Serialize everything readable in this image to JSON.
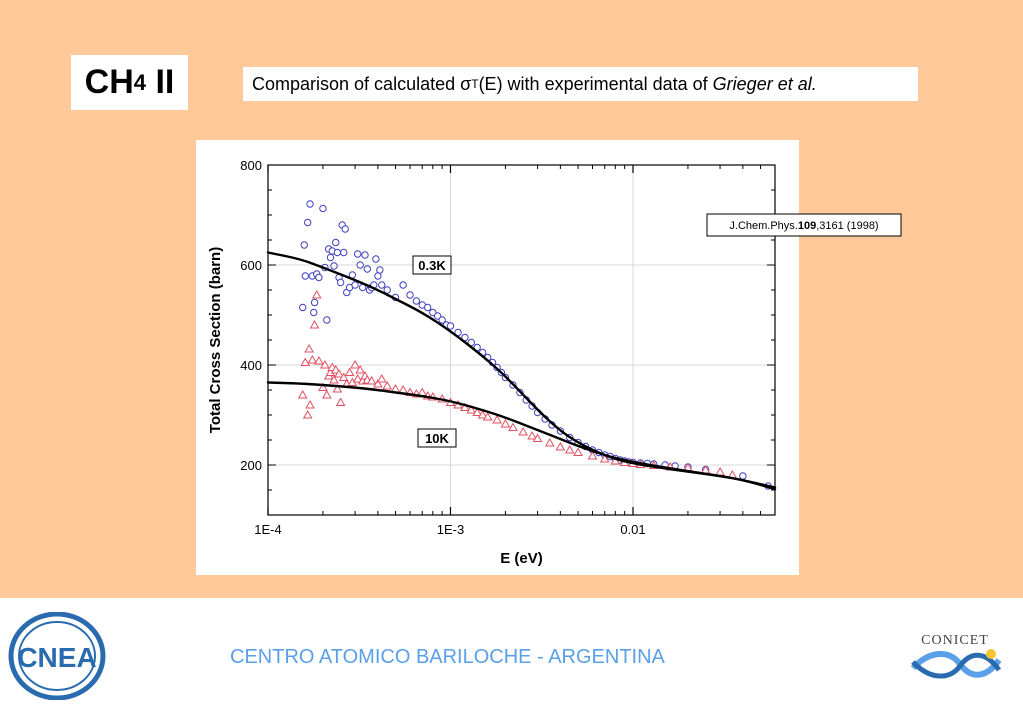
{
  "slide": {
    "title_main": "CH",
    "title_sub": "4",
    "title_tail": " II",
    "subtitle_pre": "Comparison of calculated σ",
    "subtitle_sub": "T",
    "subtitle_mid": "(E) with experimental data of ",
    "subtitle_italic": "Grieger et al.",
    "footer_text": "CENTRO ATOMICO BARILOCHE - ARGENTINA",
    "logo_left_text": "CNEA",
    "logo_right_text": "CONICET"
  },
  "colors": {
    "background": "#ffc99a",
    "footer_text": "#5aa0e8",
    "circles": "#4040c0",
    "triangles": "#e05060",
    "curves": "#000000"
  },
  "chart_data": {
    "type": "scatter",
    "x_scale": "log",
    "xlabel": "E (eV)",
    "ylabel": "Total Cross Section (barn)",
    "xlim": [
      0.0001,
      0.06
    ],
    "ylim": [
      100,
      800
    ],
    "x_ticks": [
      0.0001,
      0.001,
      0.01
    ],
    "x_tick_labels": [
      "1E-4",
      "1E-3",
      "0.01"
    ],
    "y_ticks": [
      200,
      400,
      600,
      800
    ],
    "y_tick_labels": [
      "200",
      "400",
      "600",
      "800"
    ],
    "grid": true,
    "reference": {
      "pre": "J.Chem.Phys.",
      "bold": "109",
      "post": ",3161 (1998)"
    },
    "series": [
      {
        "name": "0.3K",
        "marker": "circle",
        "points": [
          [
            0.000155,
            515
          ],
          [
            0.00016,
            578
          ],
          [
            0.000165,
            685
          ],
          [
            0.000158,
            640
          ],
          [
            0.00017,
            722
          ],
          [
            0.000175,
            578
          ],
          [
            0.000178,
            505
          ],
          [
            0.00018,
            525
          ],
          [
            0.000185,
            582
          ],
          [
            0.00019,
            575
          ],
          [
            0.0002,
            713
          ],
          [
            0.000205,
            595
          ],
          [
            0.00021,
            490
          ],
          [
            0.000215,
            632
          ],
          [
            0.00022,
            615
          ],
          [
            0.000225,
            628
          ],
          [
            0.00023,
            598
          ],
          [
            0.000235,
            645
          ],
          [
            0.00024,
            625
          ],
          [
            0.000245,
            575
          ],
          [
            0.00025,
            565
          ],
          [
            0.000255,
            680
          ],
          [
            0.00026,
            625
          ],
          [
            0.000265,
            672
          ],
          [
            0.00027,
            545
          ],
          [
            0.00028,
            555
          ],
          [
            0.00029,
            580
          ],
          [
            0.0003,
            560
          ],
          [
            0.00031,
            622
          ],
          [
            0.00032,
            600
          ],
          [
            0.00033,
            555
          ],
          [
            0.00034,
            620
          ],
          [
            0.00035,
            592
          ],
          [
            0.00036,
            550
          ],
          [
            0.00037,
            555
          ],
          [
            0.00038,
            560
          ],
          [
            0.00039,
            612
          ],
          [
            0.0004,
            578
          ],
          [
            0.00041,
            590
          ],
          [
            0.00042,
            560
          ],
          [
            0.00045,
            550
          ],
          [
            0.0005,
            535
          ],
          [
            0.00055,
            560
          ],
          [
            0.0006,
            540
          ],
          [
            0.00065,
            528
          ],
          [
            0.0007,
            520
          ],
          [
            0.00075,
            515
          ],
          [
            0.0008,
            505
          ],
          [
            0.00085,
            498
          ],
          [
            0.0009,
            490
          ],
          [
            0.00095,
            480
          ],
          [
            0.001,
            478
          ],
          [
            0.0011,
            465
          ],
          [
            0.0012,
            455
          ],
          [
            0.0013,
            445
          ],
          [
            0.0014,
            435
          ],
          [
            0.0015,
            425
          ],
          [
            0.0016,
            415
          ],
          [
            0.0017,
            405
          ],
          [
            0.0018,
            395
          ],
          [
            0.0019,
            385
          ],
          [
            0.002,
            375
          ],
          [
            0.0022,
            360
          ],
          [
            0.0024,
            345
          ],
          [
            0.0026,
            330
          ],
          [
            0.0028,
            318
          ],
          [
            0.003,
            305
          ],
          [
            0.0033,
            292
          ],
          [
            0.0036,
            280
          ],
          [
            0.004,
            268
          ],
          [
            0.0045,
            255
          ],
          [
            0.005,
            245
          ],
          [
            0.0055,
            237
          ],
          [
            0.006,
            230
          ],
          [
            0.0065,
            225
          ],
          [
            0.007,
            220
          ],
          [
            0.0075,
            217
          ],
          [
            0.008,
            213
          ],
          [
            0.0085,
            210
          ],
          [
            0.009,
            208
          ],
          [
            0.0095,
            206
          ],
          [
            0.01,
            205
          ],
          [
            0.011,
            204
          ],
          [
            0.012,
            203
          ],
          [
            0.013,
            202
          ],
          [
            0.015,
            200
          ],
          [
            0.017,
            198
          ],
          [
            0.02,
            196
          ],
          [
            0.025,
            191
          ],
          [
            0.04,
            178
          ],
          [
            0.055,
            158
          ]
        ]
      },
      {
        "name": "10K",
        "marker": "triangle",
        "points": [
          [
            0.000155,
            340
          ],
          [
            0.00016,
            405
          ],
          [
            0.000165,
            300
          ],
          [
            0.000168,
            432
          ],
          [
            0.00017,
            320
          ],
          [
            0.000175,
            410
          ],
          [
            0.00018,
            480
          ],
          [
            0.000185,
            540
          ],
          [
            0.00019,
            408
          ],
          [
            0.0002,
            355
          ],
          [
            0.000205,
            400
          ],
          [
            0.00021,
            340
          ],
          [
            0.000215,
            378
          ],
          [
            0.00022,
            385
          ],
          [
            0.000225,
            395
          ],
          [
            0.00023,
            370
          ],
          [
            0.000235,
            390
          ],
          [
            0.00024,
            352
          ],
          [
            0.000245,
            382
          ],
          [
            0.00025,
            325
          ],
          [
            0.00026,
            375
          ],
          [
            0.00027,
            362
          ],
          [
            0.00028,
            385
          ],
          [
            0.00029,
            365
          ],
          [
            0.0003,
            400
          ],
          [
            0.00031,
            372
          ],
          [
            0.00032,
            390
          ],
          [
            0.00033,
            368
          ],
          [
            0.00034,
            378
          ],
          [
            0.00035,
            370
          ],
          [
            0.00037,
            368
          ],
          [
            0.0004,
            362
          ],
          [
            0.00042,
            372
          ],
          [
            0.00045,
            358
          ],
          [
            0.0005,
            352
          ],
          [
            0.00055,
            350
          ],
          [
            0.0006,
            345
          ],
          [
            0.00065,
            342
          ],
          [
            0.0007,
            345
          ],
          [
            0.00075,
            338
          ],
          [
            0.0008,
            336
          ],
          [
            0.0009,
            332
          ],
          [
            0.001,
            325
          ],
          [
            0.0011,
            320
          ],
          [
            0.0012,
            315
          ],
          [
            0.0013,
            310
          ],
          [
            0.0014,
            305
          ],
          [
            0.0015,
            300
          ],
          [
            0.0016,
            296
          ],
          [
            0.0018,
            290
          ],
          [
            0.002,
            282
          ],
          [
            0.0022,
            275
          ],
          [
            0.0025,
            266
          ],
          [
            0.0028,
            258
          ],
          [
            0.003,
            253
          ],
          [
            0.0035,
            244
          ],
          [
            0.004,
            236
          ],
          [
            0.0045,
            230
          ],
          [
            0.005,
            225
          ],
          [
            0.006,
            218
          ],
          [
            0.007,
            212
          ],
          [
            0.008,
            208
          ],
          [
            0.009,
            205
          ],
          [
            0.01,
            203
          ],
          [
            0.011,
            201
          ],
          [
            0.013,
            199
          ],
          [
            0.016,
            196
          ],
          [
            0.02,
            194
          ],
          [
            0.025,
            190
          ],
          [
            0.03,
            186
          ],
          [
            0.035,
            180
          ]
        ]
      },
      {
        "name": "0.3K",
        "type": "line",
        "x": [
          0.0001,
          0.00015,
          0.0002,
          0.0003,
          0.0004,
          0.0005,
          0.0007,
          0.001,
          0.0015,
          0.002,
          0.003,
          0.004,
          0.005,
          0.006,
          0.007,
          0.008,
          0.01,
          0.015,
          0.02,
          0.03,
          0.04,
          0.06
        ],
        "y": [
          625,
          612,
          595,
          570,
          550,
          532,
          505,
          468,
          418,
          378,
          310,
          268,
          245,
          230,
          220,
          212,
          203,
          193,
          187,
          178,
          170,
          152
        ]
      },
      {
        "name": "10K",
        "type": "line",
        "x": [
          0.0001,
          0.00015,
          0.0002,
          0.0003,
          0.0004,
          0.0005,
          0.0007,
          0.001,
          0.0015,
          0.002,
          0.003,
          0.004,
          0.005,
          0.006,
          0.007,
          0.008,
          0.01,
          0.015,
          0.02,
          0.03,
          0.04,
          0.06
        ],
        "y": [
          365,
          363,
          360,
          355,
          350,
          345,
          338,
          328,
          310,
          295,
          270,
          252,
          238,
          228,
          220,
          214,
          206,
          195,
          188,
          178,
          170,
          155
        ]
      }
    ]
  }
}
